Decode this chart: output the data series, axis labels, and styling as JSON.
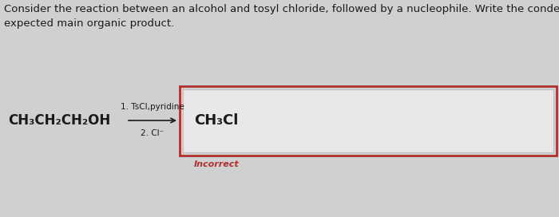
{
  "bg_color": "#d0d0d0",
  "white_bg": "#f0f0f0",
  "title_text": "Consider the reaction between an alcohol and tosyl chloride, followed by a nucleophile. Write the condensed formula of the\nexpected main organic product.",
  "title_fontsize": 9.5,
  "title_color": "#1a1a1a",
  "reactant": "CH₃CH₂CH₂OH",
  "reactant_fontsize": 12,
  "step1": "1. TsCl,pyridine",
  "step2": "2. Cl⁻",
  "steps_fontsize": 7.5,
  "product": "CH₃Cl",
  "product_fontsize": 13,
  "incorrect_text": "Incorrect",
  "incorrect_color": "#b03030",
  "incorrect_fontsize": 8,
  "outer_box_color": "#b03030",
  "inner_box_color": "#c0c0c0",
  "inner_box_face": "#e8e8e8",
  "arrow_color": "#1a1a1a"
}
